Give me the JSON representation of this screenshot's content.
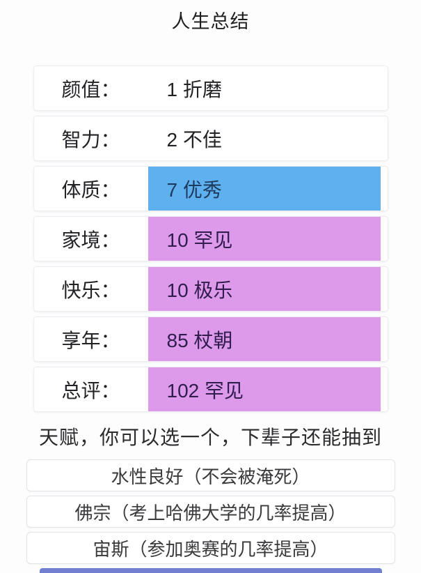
{
  "title": "人生总结",
  "summary": {
    "rows": [
      {
        "label": "颜值：",
        "value": "1 折磨",
        "variant": "plain"
      },
      {
        "label": "智力：",
        "value": "2 不佳",
        "variant": "plain"
      },
      {
        "label": "体质：",
        "value": "7 优秀",
        "variant": "blue"
      },
      {
        "label": "家境：",
        "value": "10 罕见",
        "variant": "purple"
      },
      {
        "label": "快乐：",
        "value": "10 极乐",
        "variant": "purple"
      },
      {
        "label": "享年：",
        "value": "85 杖朝",
        "variant": "purple"
      },
      {
        "label": "总评：",
        "value": "102 罕见",
        "variant": "purple"
      }
    ]
  },
  "talents": {
    "hint": "天赋，你可以选一个，下辈子还能抽到",
    "options": [
      {
        "label": "水性良好（不会被淹死）"
      },
      {
        "label": "佛宗（考上哈佛大学的几率提高）"
      },
      {
        "label": "宙斯（参加奥赛的几率提高）"
      }
    ]
  },
  "colors": {
    "stat_blue_bg": "#5fb0ee",
    "stat_blue_text": "#1c3a5e",
    "stat_purple_bg": "#dd9aeb",
    "stat_purple_text": "#301c4d",
    "bottom_bar": "#7280d2"
  }
}
